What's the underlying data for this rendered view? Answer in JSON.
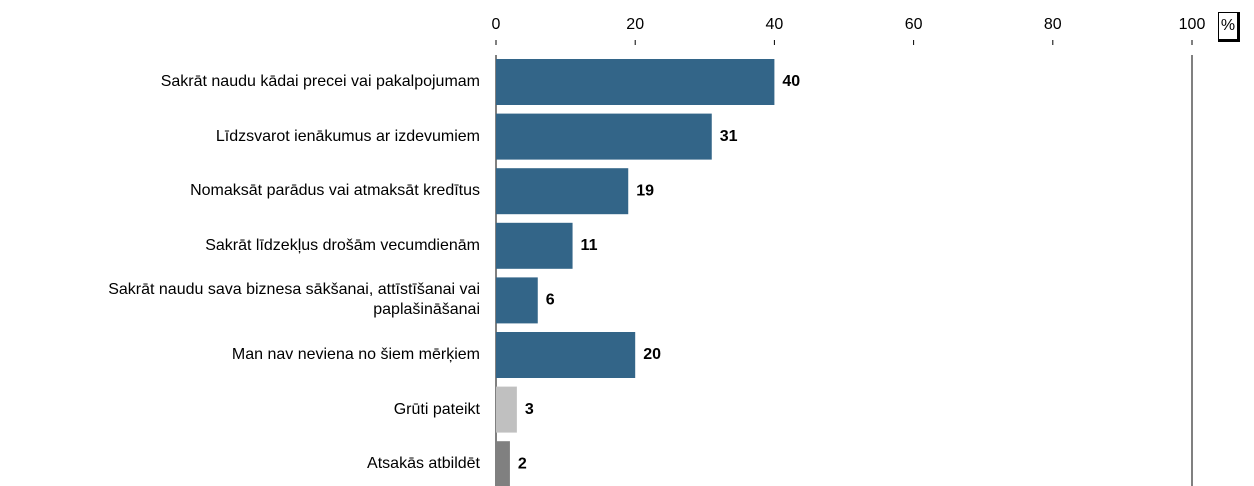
{
  "chart_data": {
    "type": "bar",
    "orientation": "horizontal",
    "unit_label": "%",
    "categories": [
      "Sakrāt naudu kādai precei vai pakalpojumam",
      "Līdzsvarot ienākumus ar izdevumiem",
      "Nomaksāt parādus vai atmaksāt kredītus",
      "Sakrāt līdzekļus drošām vecumdienām",
      "Sakrāt naudu sava biznesa sākšanai, attīstīšanai vai paplašināšanai",
      "Man nav neviena no šiem mērķiem",
      "Grūti pateikt",
      "Atsakās atbildēt"
    ],
    "values": [
      40,
      31,
      19,
      11,
      6,
      20,
      3,
      2
    ],
    "colors": [
      "#336588",
      "#336588",
      "#336588",
      "#336588",
      "#336588",
      "#336588",
      "#c0c0c0",
      "#808080"
    ],
    "xlim": [
      0,
      100
    ],
    "xticks": [
      0,
      20,
      40,
      60,
      80,
      100
    ],
    "grid": false
  }
}
